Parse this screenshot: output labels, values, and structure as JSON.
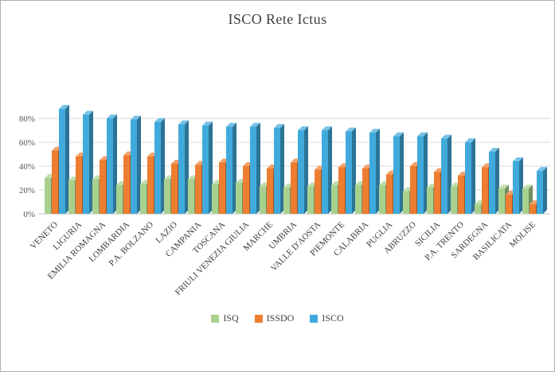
{
  "window": {
    "background": "#ffffff",
    "border_color": "#adb2b8"
  },
  "chart_data": {
    "type": "bar",
    "style": "3d-clustered-column",
    "title": "ISCO Rete Ictus",
    "xlabel": "",
    "ylabel": "",
    "ylim": [
      0,
      100
    ],
    "ytick_step": 20,
    "ytick_labels": [
      "0%",
      "20%",
      "40%",
      "60%",
      "80%"
    ],
    "grid": true,
    "legend_position": "bottom",
    "categories": [
      "VENETO",
      "LIGURIA",
      "EMILIA ROMAGNA",
      "LOMBARDIA",
      "P.A. BOLZANO",
      "LAZIO",
      "CAMPANIA",
      "TOSCANA",
      "FRIULI VENEZIA GIULIA",
      "MARCHE",
      "UMBRIA",
      "VALLE D'AOSTA",
      "PIEMONTE",
      "CALABRIA",
      "PUGLIA",
      "ABRUZZO",
      "SICILIA",
      "P.A. TRENTO",
      "SARDEGNA",
      "BASILICATA",
      "MOLISE"
    ],
    "series": [
      {
        "name": "ISQ",
        "color": "#A9D18E",
        "values": [
          30,
          28,
          29,
          24,
          25,
          29,
          29,
          25,
          26,
          23,
          22,
          23,
          24,
          24,
          24,
          19,
          22,
          23,
          8,
          21,
          21
        ]
      },
      {
        "name": "ISSDO",
        "color": "#ED7D31",
        "values": [
          53,
          48,
          45,
          49,
          48,
          42,
          41,
          43,
          40,
          38,
          43,
          37,
          39,
          38,
          33,
          40,
          35,
          32,
          39,
          16,
          8
        ]
      },
      {
        "name": "ISCO",
        "color": "#41AADC",
        "values": [
          88,
          83,
          80,
          79,
          77,
          75,
          74,
          73,
          73,
          72,
          70,
          70,
          69,
          68,
          65,
          65,
          63,
          60,
          52,
          44,
          36
        ]
      }
    ]
  }
}
